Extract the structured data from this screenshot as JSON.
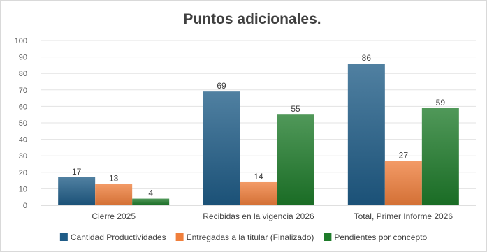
{
  "chart_data": {
    "type": "bar",
    "title": "Puntos adicionales.",
    "xlabel": "",
    "ylabel": "",
    "ylim": [
      0,
      100
    ],
    "yticks": [
      0,
      10,
      20,
      30,
      40,
      50,
      60,
      70,
      80,
      90,
      100
    ],
    "grid": true,
    "legend_position": "bottom",
    "categories": [
      "Cierre 2025",
      "Recibidas en la vigencia 2026",
      "Total, Primer Informe 2026"
    ],
    "series": [
      {
        "name": "Cantidad Productividades",
        "values": [
          17,
          69,
          86
        ],
        "color": "#1f5c87"
      },
      {
        "name": "Entregadas a la titular (Finalizado)",
        "values": [
          13,
          14,
          27
        ],
        "color": "#f07f3c"
      },
      {
        "name": "Pendientes por concepto",
        "values": [
          4,
          55,
          59
        ],
        "color": "#1e7b2a"
      }
    ]
  }
}
